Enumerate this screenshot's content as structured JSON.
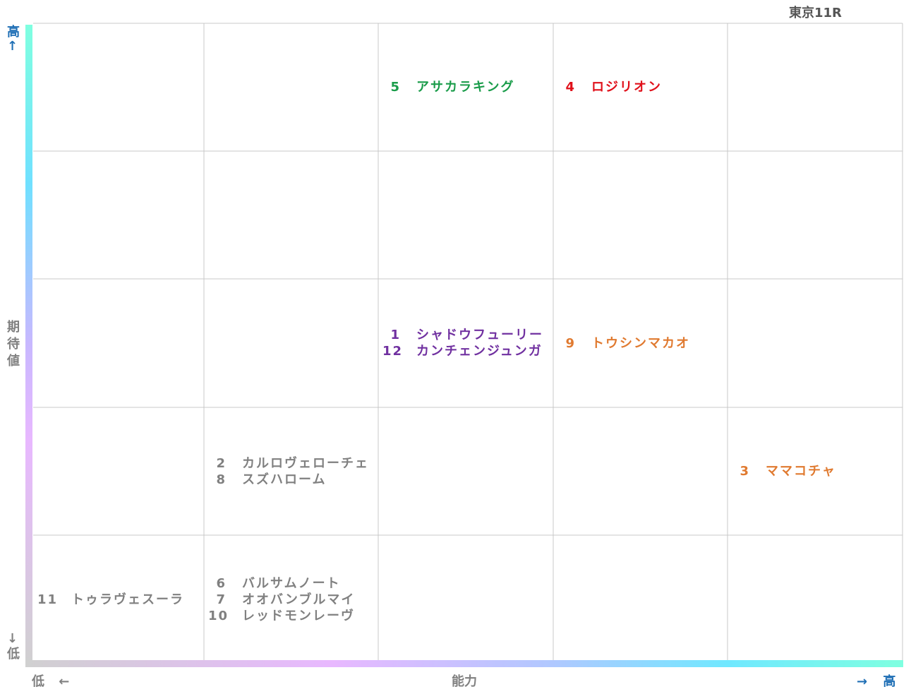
{
  "header": {
    "title": "東京11R"
  },
  "y_axis": {
    "high": "高↑",
    "label": "期待値",
    "low": "↓低"
  },
  "x_axis": {
    "low": "低 ←",
    "label": "能力",
    "high": "→ 高"
  },
  "grid": {
    "rows": [
      [
        [],
        [],
        [
          {
            "number": 5,
            "name": "アサカラキング",
            "color": "#1a9c4a"
          }
        ],
        [
          {
            "number": 4,
            "name": "ロジリオン",
            "color": "#e0101a"
          }
        ],
        []
      ],
      [
        [],
        [],
        [],
        [],
        []
      ],
      [
        [],
        [],
        [
          {
            "number": 1,
            "name": "シャドウフューリー",
            "color": "#7030a0"
          },
          {
            "number": 12,
            "name": "カンチェンジュンガ",
            "color": "#7030a0"
          }
        ],
        [
          {
            "number": 9,
            "name": "トウシンマカオ",
            "color": "#e07a30"
          }
        ],
        []
      ],
      [
        [],
        [
          {
            "number": 2,
            "name": "カルロヴェローチェ",
            "color": "#808080"
          },
          {
            "number": 8,
            "name": "スズハローム",
            "color": "#808080"
          }
        ],
        [],
        [],
        [
          {
            "number": 3,
            "name": "ママコチャ",
            "color": "#e07a30"
          }
        ]
      ],
      [
        [
          {
            "number": 11,
            "name": "トゥラヴェスーラ",
            "color": "#808080"
          }
        ],
        [
          {
            "number": 6,
            "name": "バルサムノート",
            "color": "#808080"
          },
          {
            "number": 7,
            "name": "オオバンブルマイ",
            "color": "#808080"
          },
          {
            "number": 10,
            "name": "レッドモンレーヴ",
            "color": "#808080"
          }
        ],
        [],
        [],
        []
      ]
    ]
  }
}
